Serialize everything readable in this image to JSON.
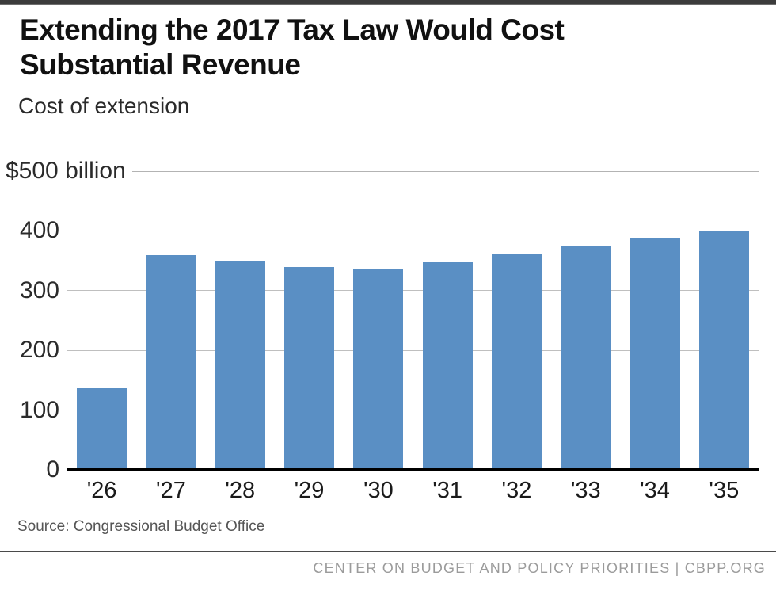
{
  "page": {
    "title": "Extending the 2017 Tax Law Would Cost\nSubstantial Revenue",
    "subtitle": "Cost of extension",
    "source": "Source: Congressional Budget Office",
    "footer": "CENTER ON BUDGET AND POLICY PRIORITIES | CBPP.ORG"
  },
  "colors": {
    "bar": "#5A8FC4",
    "gridline": "#BFBFBF",
    "axis": "#000000",
    "top_strip": "#3C3C3C",
    "footer_line": "#4A4A4A",
    "footer_text": "#9B9B9B",
    "source_text": "#565656"
  },
  "chart_data": {
    "type": "bar",
    "title": "Extending the 2017 Tax Law Would Cost Substantial Revenue",
    "subtitle": "Cost of extension",
    "unit": "billions of dollars",
    "categories": [
      "'26",
      "'27",
      "'28",
      "'29",
      "'30",
      "'31",
      "'32",
      "'33",
      "'34",
      "'35"
    ],
    "values": [
      137,
      360,
      349,
      340,
      335,
      348,
      362,
      374,
      387,
      400
    ],
    "xlabel": "",
    "ylabel": "$500 billion",
    "ylim": [
      0,
      500
    ],
    "yticks": [
      0,
      100,
      200,
      300,
      400,
      500
    ],
    "ytick_labels": [
      "0",
      "100",
      "200",
      "300",
      "400",
      "$500 billion"
    ],
    "grid": "horizontal",
    "legend": "none",
    "source": "Congressional Budget Office"
  }
}
